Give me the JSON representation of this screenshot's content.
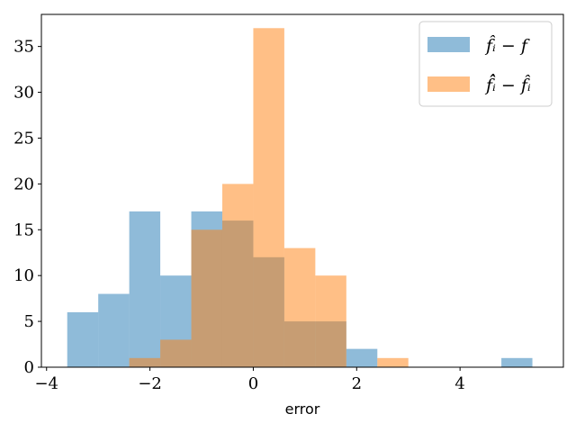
{
  "chart_data": {
    "type": "bar",
    "xlabel": "error",
    "ylabel": "",
    "xlim": [
      -4.1,
      6.0
    ],
    "ylim": [
      0,
      38.5
    ],
    "xticks": [
      -4,
      -2,
      0,
      2,
      4
    ],
    "xtick_labels": [
      "−4",
      "−2",
      "0",
      "2",
      "4"
    ],
    "yticks": [
      0,
      5,
      10,
      15,
      20,
      25,
      30,
      35
    ],
    "ytick_labels": [
      "0",
      "5",
      "10",
      "15",
      "20",
      "25",
      "30",
      "35"
    ],
    "grid": false,
    "legend": "top-right",
    "series": [
      {
        "name": "f̂ᵢ − f",
        "color": "#1f77b4",
        "bin_edges": [
          -3.6,
          -3.0,
          -2.4,
          -1.8,
          -1.2,
          -0.6,
          0.0,
          0.6,
          1.2,
          1.8,
          2.4,
          3.0,
          3.6,
          4.2,
          4.8,
          5.4
        ],
        "counts": [
          6,
          8,
          17,
          10,
          17,
          16,
          12,
          5,
          5,
          2,
          0,
          0,
          0,
          0,
          1
        ]
      },
      {
        "name": "f̂̂ᵢ − f̂ᵢ",
        "color": "#ff7f0e",
        "bin_edges": [
          -2.4,
          -1.8,
          -1.2,
          -0.6,
          0.0,
          0.6,
          1.2,
          1.8,
          2.4,
          3.0
        ],
        "counts": [
          1,
          3,
          15,
          20,
          37,
          13,
          10,
          0,
          1
        ]
      }
    ]
  }
}
